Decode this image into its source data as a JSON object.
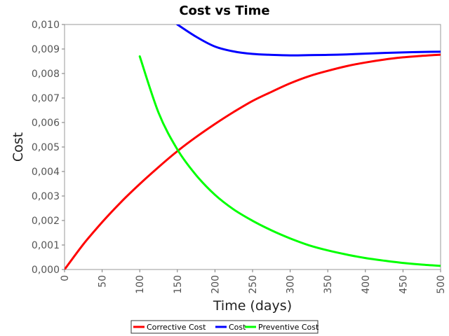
{
  "chart_data": {
    "type": "line",
    "title": "Cost vs Time",
    "xlabel": "Time (days)",
    "ylabel": "Cost",
    "xlim": [
      0,
      500
    ],
    "ylim": [
      0.0,
      0.01
    ],
    "x_ticks": [
      "0",
      "50",
      "100",
      "150",
      "200",
      "250",
      "300",
      "350",
      "400",
      "450",
      "500"
    ],
    "y_ticks": [
      "0,000",
      "0,001",
      "0,002",
      "0,003",
      "0,004",
      "0,005",
      "0,006",
      "0,007",
      "0,008",
      "0,009",
      "0,010"
    ],
    "grid": false,
    "legend_position": "bottom",
    "x": [
      0,
      25,
      50,
      75,
      100,
      125,
      150,
      175,
      200,
      225,
      250,
      275,
      300,
      325,
      350,
      375,
      400,
      425,
      450,
      475,
      500
    ],
    "series": [
      {
        "name": "Corrective Cost",
        "color": "#ff0000",
        "values": [
          0.0,
          0.00103,
          0.00193,
          0.00275,
          0.00349,
          0.00418,
          0.00483,
          0.00541,
          0.00594,
          0.00643,
          0.00688,
          0.00725,
          0.0076,
          0.00789,
          0.00811,
          0.0083,
          0.00845,
          0.00857,
          0.00866,
          0.00872,
          0.00877
        ]
      },
      {
        "name": "Cost",
        "color": "#0000ff",
        "values": [
          null,
          null,
          null,
          null,
          null,
          null,
          0.01,
          0.0095,
          0.0091,
          0.0089,
          0.0088,
          0.00876,
          0.00874,
          0.00875,
          0.00876,
          0.00878,
          0.00881,
          0.00884,
          0.00886,
          0.00888,
          0.00889
        ]
      },
      {
        "name": "Preventive Cost",
        "color": "#00ff00",
        "values": [
          null,
          null,
          null,
          null,
          0.0087,
          0.0064,
          0.0049,
          0.00385,
          0.00305,
          0.00245,
          0.00199,
          0.0016,
          0.00127,
          0.00099,
          0.00078,
          0.00061,
          0.00047,
          0.00036,
          0.00027,
          0.0002,
          0.00015
        ]
      }
    ]
  }
}
